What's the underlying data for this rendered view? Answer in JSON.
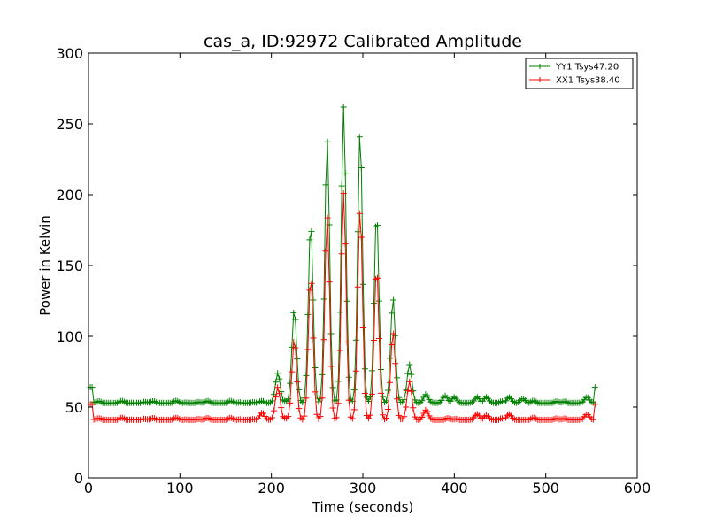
{
  "chart_data": {
    "type": "line",
    "title": "cas_a, ID:92972 Calibrated Amplitude",
    "xlabel": "Time (seconds)",
    "ylabel": "Power in Kelvin",
    "xlim": [
      0,
      600
    ],
    "ylim": [
      0,
      300
    ],
    "xticks": [
      0,
      100,
      200,
      300,
      400,
      500,
      600
    ],
    "yticks": [
      0,
      50,
      100,
      150,
      200,
      250,
      300
    ],
    "grid": false,
    "legend_position": "top-right",
    "marker": "plus",
    "series": [
      {
        "name": "YY1 Tsys47.20",
        "color": "#008000",
        "baseline": 53,
        "start": 64,
        "end": 64,
        "peaks": [
          {
            "x": 207,
            "y": 74
          },
          {
            "x": 225,
            "y": 119
          },
          {
            "x": 243,
            "y": 180
          },
          {
            "x": 261,
            "y": 239
          },
          {
            "x": 279,
            "y": 262
          },
          {
            "x": 297,
            "y": 245
          },
          {
            "x": 315,
            "y": 187
          },
          {
            "x": 333,
            "y": 127
          },
          {
            "x": 351,
            "y": 80
          },
          {
            "x": 369,
            "y": 59
          },
          {
            "x": 390,
            "y": 58
          },
          {
            "x": 400,
            "y": 57
          },
          {
            "x": 425,
            "y": 57
          },
          {
            "x": 435,
            "y": 57
          },
          {
            "x": 460,
            "y": 57
          },
          {
            "x": 475,
            "y": 56
          },
          {
            "x": 545,
            "y": 57
          }
        ]
      },
      {
        "name": "XX1 Tsys38.40",
        "color": "#ff0000",
        "baseline": 41,
        "start": 52,
        "end": 52,
        "peaks": [
          {
            "x": 190,
            "y": 46
          },
          {
            "x": 207,
            "y": 64
          },
          {
            "x": 225,
            "y": 98
          },
          {
            "x": 243,
            "y": 142
          },
          {
            "x": 261,
            "y": 185
          },
          {
            "x": 279,
            "y": 201
          },
          {
            "x": 297,
            "y": 190
          },
          {
            "x": 315,
            "y": 148
          },
          {
            "x": 333,
            "y": 103
          },
          {
            "x": 351,
            "y": 68
          },
          {
            "x": 369,
            "y": 48
          },
          {
            "x": 425,
            "y": 45
          },
          {
            "x": 435,
            "y": 44
          },
          {
            "x": 460,
            "y": 45
          },
          {
            "x": 545,
            "y": 45
          }
        ]
      }
    ]
  }
}
